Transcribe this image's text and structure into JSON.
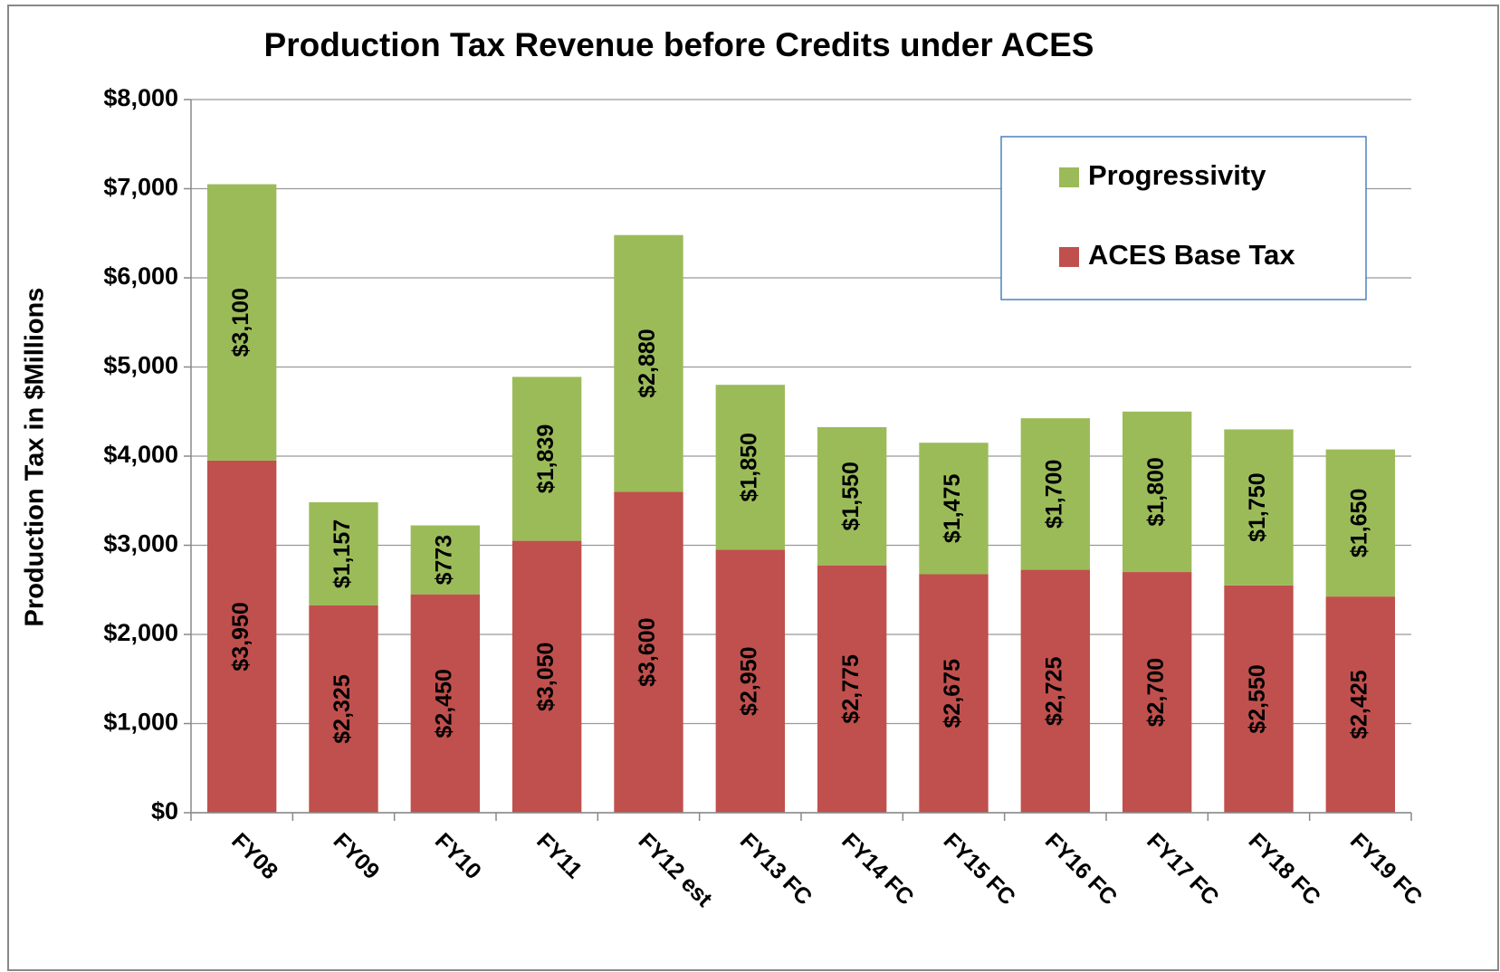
{
  "chart_data": {
    "type": "stacked_bar",
    "title": "Production Tax Revenue before Credits under ACES",
    "ylabel": "Production Tax in $Millions",
    "categories": [
      "FY08",
      "FY09",
      "FY10",
      "FY11",
      "FY12 est",
      "FY13 FC",
      "FY14 FC",
      "FY15 FC",
      "FY16 FC",
      "FY17 FC",
      "FY18 FC",
      "FY19 FC"
    ],
    "series": [
      {
        "name": "ACES Base Tax",
        "color": "#c0504d",
        "values": [
          3950,
          2325,
          2450,
          3050,
          3600,
          2950,
          2775,
          2675,
          2725,
          2700,
          2550,
          2425
        ],
        "value_labels": [
          "$3,950",
          "$2,325",
          "$2,450",
          "$3,050",
          "$3,600",
          "$2,950",
          "$2,775",
          "$2,675",
          "$2,725",
          "$2,700",
          "$2,550",
          "$2,425"
        ]
      },
      {
        "name": "Progressivity",
        "color": "#9bbb59",
        "values": [
          3100,
          1157,
          773,
          1839,
          2880,
          1850,
          1550,
          1475,
          1700,
          1800,
          1750,
          1650
        ],
        "value_labels": [
          "$3,100",
          "$1,157",
          "$773",
          "$1,839",
          "$2,880",
          "$1,850",
          "$1,550",
          "$1,475",
          "$1,700",
          "$1,800",
          "$1,750",
          "$1,650"
        ]
      }
    ],
    "ylim": [
      0,
      8000
    ],
    "yticks": [
      {
        "value": 0,
        "label": "$0"
      },
      {
        "value": 1000,
        "label": "$1,000"
      },
      {
        "value": 2000,
        "label": "$2,000"
      },
      {
        "value": 3000,
        "label": "$3,000"
      },
      {
        "value": 4000,
        "label": "$4,000"
      },
      {
        "value": 5000,
        "label": "$5,000"
      },
      {
        "value": 6000,
        "label": "$6,000"
      },
      {
        "value": 7000,
        "label": "$7,000"
      },
      {
        "value": 8000,
        "label": "$8,000"
      }
    ],
    "grid": true,
    "legend": "upper right"
  }
}
